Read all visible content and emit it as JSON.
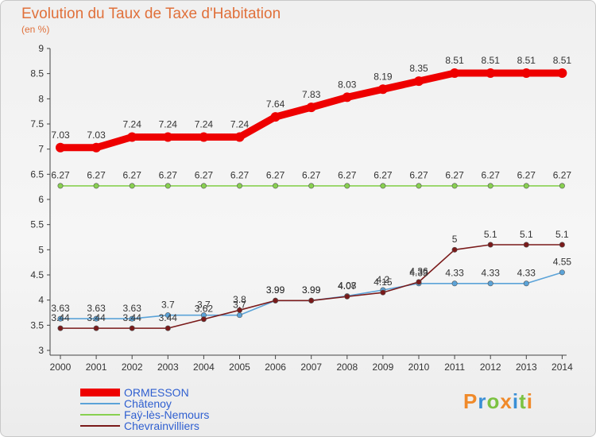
{
  "title": "Evolution du Taux de Taxe d'Habitation",
  "subtitle": "(en %)",
  "brand": {
    "letters": [
      "P",
      "r",
      "o",
      "x",
      "i",
      "t",
      "i"
    ],
    "colors": [
      "#f08a2a",
      "#3a8fd6",
      "#7cc242",
      "#f08a2a",
      "#3a8fd6",
      "#7cc242",
      "#f08a2a"
    ]
  },
  "chart_data": {
    "type": "line",
    "x": [
      2000,
      2001,
      2002,
      2003,
      2004,
      2005,
      2006,
      2007,
      2008,
      2009,
      2010,
      2011,
      2012,
      2013,
      2014
    ],
    "ylim": [
      3,
      9
    ],
    "yticks": [
      "3",
      "3.5",
      "4",
      "4.5",
      "5",
      "5.5",
      "6",
      "6.5",
      "7",
      "7.5",
      "8",
      "8.5",
      "9"
    ],
    "grid": false,
    "legend_position": "bottom-left",
    "series": [
      {
        "name": "ORMESSON",
        "color": "#ee0000",
        "labels": [
          "7.03",
          "7.03",
          "7.24",
          "7.24",
          "7.24",
          "7.24",
          "7.64",
          "7.83",
          "8.03",
          "8.19",
          "8.35",
          "8.51",
          "8.51",
          "8.51",
          "8.51"
        ],
        "values": [
          7.03,
          7.03,
          7.24,
          7.24,
          7.24,
          7.24,
          7.64,
          7.83,
          8.03,
          8.19,
          8.35,
          8.51,
          8.51,
          8.51,
          8.51
        ]
      },
      {
        "name": "Châtenoy",
        "color": "#5ba3d8",
        "labels": [
          "3.63",
          "3.63",
          "3.63",
          "3.7",
          "3.7",
          "3.7",
          "3.99",
          "3.99",
          "4.08",
          "4.2",
          "4.33",
          "4.33",
          "4.33",
          "4.33",
          "4.55"
        ],
        "values": [
          3.63,
          3.63,
          3.63,
          3.7,
          3.7,
          3.7,
          3.99,
          3.99,
          4.08,
          4.2,
          4.33,
          4.33,
          4.33,
          4.33,
          4.55
        ]
      },
      {
        "name": "Faÿ-lès-Nemours",
        "color": "#88d050",
        "labels": [
          "6.27",
          "6.27",
          "6.27",
          "6.27",
          "6.27",
          "6.27",
          "6.27",
          "6.27",
          "6.27",
          "6.27",
          "6.27",
          "6.27",
          "6.27",
          "6.27",
          "6.27"
        ],
        "values": [
          6.27,
          6.27,
          6.27,
          6.27,
          6.27,
          6.27,
          6.27,
          6.27,
          6.27,
          6.27,
          6.27,
          6.27,
          6.27,
          6.27,
          6.27
        ]
      },
      {
        "name": "Chevrainvilliers",
        "color": "#7a1a1a",
        "labels": [
          "3.44",
          "3.44",
          "3.44",
          "3.44",
          "3.62",
          "3.8",
          "3.99",
          "3.99",
          "4.07",
          "4.15",
          "4.36",
          "5",
          "5.1",
          "5.1",
          "5.1"
        ],
        "values": [
          3.44,
          3.44,
          3.44,
          3.44,
          3.62,
          3.8,
          3.99,
          3.99,
          4.07,
          4.15,
          4.36,
          5,
          5.1,
          5.1,
          5.1
        ]
      }
    ]
  }
}
